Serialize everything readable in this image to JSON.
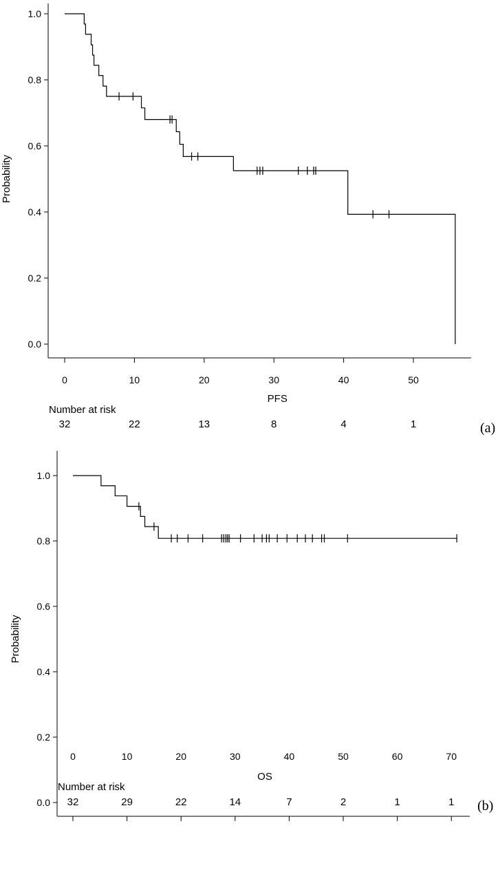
{
  "chart_data": [
    {
      "type": "line",
      "subtype": "kaplan-meier",
      "panel_label": "(a)",
      "xlabel": "PFS",
      "ylabel": "Probability",
      "xlim": [
        0,
        56
      ],
      "ylim": [
        0,
        1
      ],
      "x_ticks": [
        0,
        10,
        20,
        30,
        40,
        50
      ],
      "y_ticks": [
        0.0,
        0.2,
        0.4,
        0.6,
        0.8,
        1.0
      ],
      "y_tick_labels": [
        "0.0",
        "0.2",
        "0.4",
        "0.6",
        "0.8",
        "1.0"
      ],
      "steps": [
        {
          "x": 0,
          "y": 1.0
        },
        {
          "x": 2.8,
          "y": 0.969
        },
        {
          "x": 3.0,
          "y": 0.938
        },
        {
          "x": 3.8,
          "y": 0.906
        },
        {
          "x": 4.0,
          "y": 0.875
        },
        {
          "x": 4.2,
          "y": 0.844
        },
        {
          "x": 4.9,
          "y": 0.813
        },
        {
          "x": 5.5,
          "y": 0.781
        },
        {
          "x": 6.0,
          "y": 0.75
        },
        {
          "x": 11.0,
          "y": 0.715
        },
        {
          "x": 11.5,
          "y": 0.68
        },
        {
          "x": 16.0,
          "y": 0.643
        },
        {
          "x": 16.5,
          "y": 0.605
        },
        {
          "x": 17.0,
          "y": 0.568
        },
        {
          "x": 24.2,
          "y": 0.525
        },
        {
          "x": 40.6,
          "y": 0.393
        },
        {
          "x": 56.0,
          "y": 0.0
        }
      ],
      "censored": [
        {
          "x": 7.8,
          "y": 0.75
        },
        {
          "x": 9.8,
          "y": 0.75
        },
        {
          "x": 15.1,
          "y": 0.68
        },
        {
          "x": 15.4,
          "y": 0.68
        },
        {
          "x": 18.2,
          "y": 0.568
        },
        {
          "x": 19.1,
          "y": 0.568
        },
        {
          "x": 27.6,
          "y": 0.525
        },
        {
          "x": 28.0,
          "y": 0.525
        },
        {
          "x": 28.4,
          "y": 0.525
        },
        {
          "x": 33.5,
          "y": 0.525
        },
        {
          "x": 34.8,
          "y": 0.525
        },
        {
          "x": 35.7,
          "y": 0.525
        },
        {
          "x": 36.0,
          "y": 0.525
        },
        {
          "x": 44.2,
          "y": 0.393
        },
        {
          "x": 46.5,
          "y": 0.393
        }
      ],
      "risk_table": {
        "label": "Number at risk",
        "x": [
          0,
          10,
          20,
          30,
          40,
          50
        ],
        "counts": [
          "32",
          "22",
          "13",
          "8",
          "4",
          "1"
        ]
      }
    },
    {
      "type": "line",
      "subtype": "kaplan-meier",
      "panel_label": "(b)",
      "xlabel": "OS",
      "ylabel": "Probability",
      "xlim": [
        0,
        71
      ],
      "ylim": [
        0,
        1
      ],
      "x_ticks": [
        0,
        10,
        20,
        30,
        40,
        50,
        60,
        70
      ],
      "y_ticks": [
        0.0,
        0.2,
        0.4,
        0.6,
        0.8,
        1.0
      ],
      "y_tick_labels": [
        "0.0",
        "0.2",
        "0.4",
        "0.6",
        "0.8",
        "1.0"
      ],
      "steps": [
        {
          "x": 0,
          "y": 1.0
        },
        {
          "x": 5.2,
          "y": 0.969
        },
        {
          "x": 7.8,
          "y": 0.938
        },
        {
          "x": 10.0,
          "y": 0.906
        },
        {
          "x": 12.5,
          "y": 0.875
        },
        {
          "x": 13.3,
          "y": 0.844
        },
        {
          "x": 15.8,
          "y": 0.808
        },
        {
          "x": 71.0,
          "y": 0.808
        }
      ],
      "censored": [
        {
          "x": 12.2,
          "y": 0.906
        },
        {
          "x": 15.0,
          "y": 0.844
        },
        {
          "x": 18.2,
          "y": 0.808
        },
        {
          "x": 19.3,
          "y": 0.808
        },
        {
          "x": 21.3,
          "y": 0.808
        },
        {
          "x": 24.0,
          "y": 0.808
        },
        {
          "x": 27.5,
          "y": 0.808
        },
        {
          "x": 27.9,
          "y": 0.808
        },
        {
          "x": 28.3,
          "y": 0.808
        },
        {
          "x": 28.6,
          "y": 0.808
        },
        {
          "x": 28.9,
          "y": 0.808
        },
        {
          "x": 31.0,
          "y": 0.808
        },
        {
          "x": 33.5,
          "y": 0.808
        },
        {
          "x": 35.0,
          "y": 0.808
        },
        {
          "x": 35.8,
          "y": 0.808
        },
        {
          "x": 36.3,
          "y": 0.808
        },
        {
          "x": 37.8,
          "y": 0.808
        },
        {
          "x": 39.6,
          "y": 0.808
        },
        {
          "x": 41.5,
          "y": 0.808
        },
        {
          "x": 43.0,
          "y": 0.808
        },
        {
          "x": 44.3,
          "y": 0.808
        },
        {
          "x": 46.0,
          "y": 0.808
        },
        {
          "x": 46.5,
          "y": 0.808
        },
        {
          "x": 50.8,
          "y": 0.808
        },
        {
          "x": 71.0,
          "y": 0.808
        }
      ],
      "risk_table": {
        "label": "Number at risk",
        "x": [
          0,
          10,
          20,
          30,
          40,
          50,
          60,
          70
        ],
        "counts": [
          "32",
          "29",
          "22",
          "14",
          "7",
          "2",
          "1",
          "1"
        ]
      }
    }
  ]
}
